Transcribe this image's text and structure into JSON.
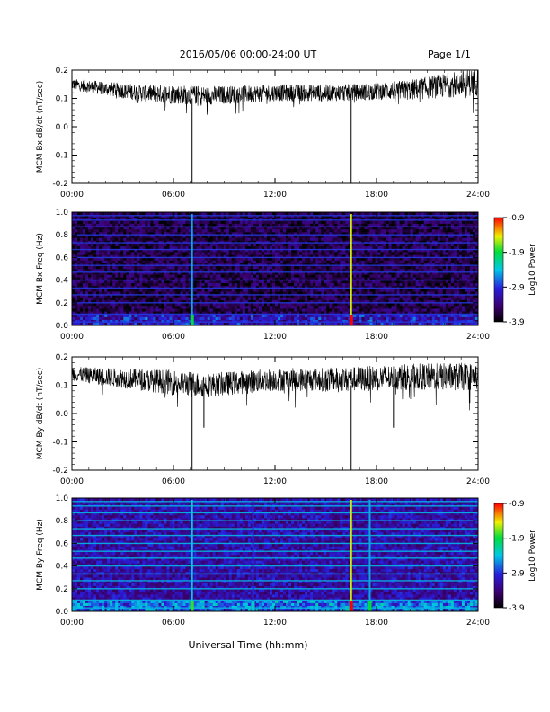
{
  "header": {
    "title": "2016/05/06  00:00-24:00 UT",
    "page": "Page 1/1"
  },
  "footer": {
    "xlabel": "Universal Time (hh:mm)"
  },
  "chart_data": [
    {
      "type": "line",
      "ylabel": "MCM Bx dB/dt (nT/sec)",
      "x_ticks": [
        "00:00",
        "06:00",
        "12:00",
        "18:00",
        "24:00"
      ],
      "xlim_hours": [
        0,
        24
      ],
      "ylim": [
        -0.2,
        0.2
      ],
      "y_ticks": [
        "0.2",
        "0.1",
        "0.0",
        "-0.1",
        "-0.2"
      ],
      "baseline_band": [
        [
          0,
          0.15
        ],
        [
          4,
          0.12
        ],
        [
          8,
          0.11
        ],
        [
          12,
          0.12
        ],
        [
          16,
          0.12
        ],
        [
          20,
          0.13
        ],
        [
          24,
          0.16
        ]
      ],
      "noise_amplitude": [
        [
          0,
          0.02
        ],
        [
          6,
          0.035
        ],
        [
          12,
          0.03
        ],
        [
          18,
          0.03
        ],
        [
          24,
          0.05
        ]
      ],
      "spikes": [
        {
          "hour": 7.1,
          "min": -0.2
        },
        {
          "hour": 16.5,
          "min": -0.2
        }
      ]
    },
    {
      "type": "heatmap",
      "ylabel": "MCM Bx Freq (Hz)",
      "x_ticks": [
        "00:00",
        "06:00",
        "12:00",
        "18:00",
        "24:00"
      ],
      "ylim": [
        0.0,
        1.0
      ],
      "y_ticks": [
        "1.0",
        "0.8",
        "0.6",
        "0.4",
        "0.2",
        "0.0"
      ],
      "colorbar": {
        "label": "Log10 Power",
        "ticks": [
          "-0.9",
          "-1.9",
          "-2.9",
          "-3.9"
        ],
        "range": [
          -3.9,
          -0.9
        ]
      },
      "background_level": -3.6,
      "harmonic_lines_hz": [
        0.03,
        0.1,
        0.2,
        0.27,
        0.33,
        0.4,
        0.47,
        0.53,
        0.6,
        0.67,
        0.73,
        0.8,
        0.87,
        0.93,
        0.97
      ],
      "vertical_events": [
        {
          "hour": 7.1,
          "level": -2.5
        },
        {
          "hour": 16.5,
          "level": -1.5
        }
      ]
    },
    {
      "type": "line",
      "ylabel": "MCM By dB/dt (nT/sec)",
      "x_ticks": [
        "00:00",
        "06:00",
        "12:00",
        "18:00",
        "24:00"
      ],
      "xlim_hours": [
        0,
        24
      ],
      "ylim": [
        -0.2,
        0.2
      ],
      "y_ticks": [
        "0.2",
        "0.1",
        "0.0",
        "-0.1",
        "-0.2"
      ],
      "baseline_band": [
        [
          0,
          0.14
        ],
        [
          4,
          0.12
        ],
        [
          8,
          0.1
        ],
        [
          12,
          0.12
        ],
        [
          16,
          0.12
        ],
        [
          20,
          0.13
        ],
        [
          24,
          0.13
        ]
      ],
      "noise_amplitude": [
        [
          0,
          0.025
        ],
        [
          6,
          0.045
        ],
        [
          12,
          0.04
        ],
        [
          18,
          0.045
        ],
        [
          24,
          0.05
        ]
      ],
      "spikes": [
        {
          "hour": 7.1,
          "min": -0.2
        },
        {
          "hour": 16.5,
          "min": -0.2
        },
        {
          "hour": 7.8,
          "min": -0.05
        },
        {
          "hour": 19.0,
          "min": -0.05
        }
      ]
    },
    {
      "type": "heatmap",
      "ylabel": "MCM By Freq (Hz)",
      "x_ticks": [
        "00:00",
        "06:00",
        "12:00",
        "18:00",
        "24:00"
      ],
      "ylim": [
        0.0,
        1.0
      ],
      "y_ticks": [
        "1.0",
        "0.8",
        "0.6",
        "0.4",
        "0.2",
        "0.0"
      ],
      "colorbar": {
        "label": "Log10 Power",
        "ticks": [
          "-0.9",
          "-1.9",
          "-2.9",
          "-3.9"
        ],
        "range": [
          -3.9,
          -0.9
        ]
      },
      "background_level": -3.2,
      "harmonic_lines_hz": [
        0.03,
        0.1,
        0.2,
        0.27,
        0.33,
        0.4,
        0.47,
        0.53,
        0.6,
        0.67,
        0.73,
        0.8,
        0.87,
        0.93,
        0.97
      ],
      "vertical_events": [
        {
          "hour": 7.1,
          "level": -2.4
        },
        {
          "hour": 10.7,
          "level": -2.9
        },
        {
          "hour": 16.5,
          "level": -1.5
        },
        {
          "hour": 17.6,
          "level": -2.5
        }
      ]
    }
  ]
}
